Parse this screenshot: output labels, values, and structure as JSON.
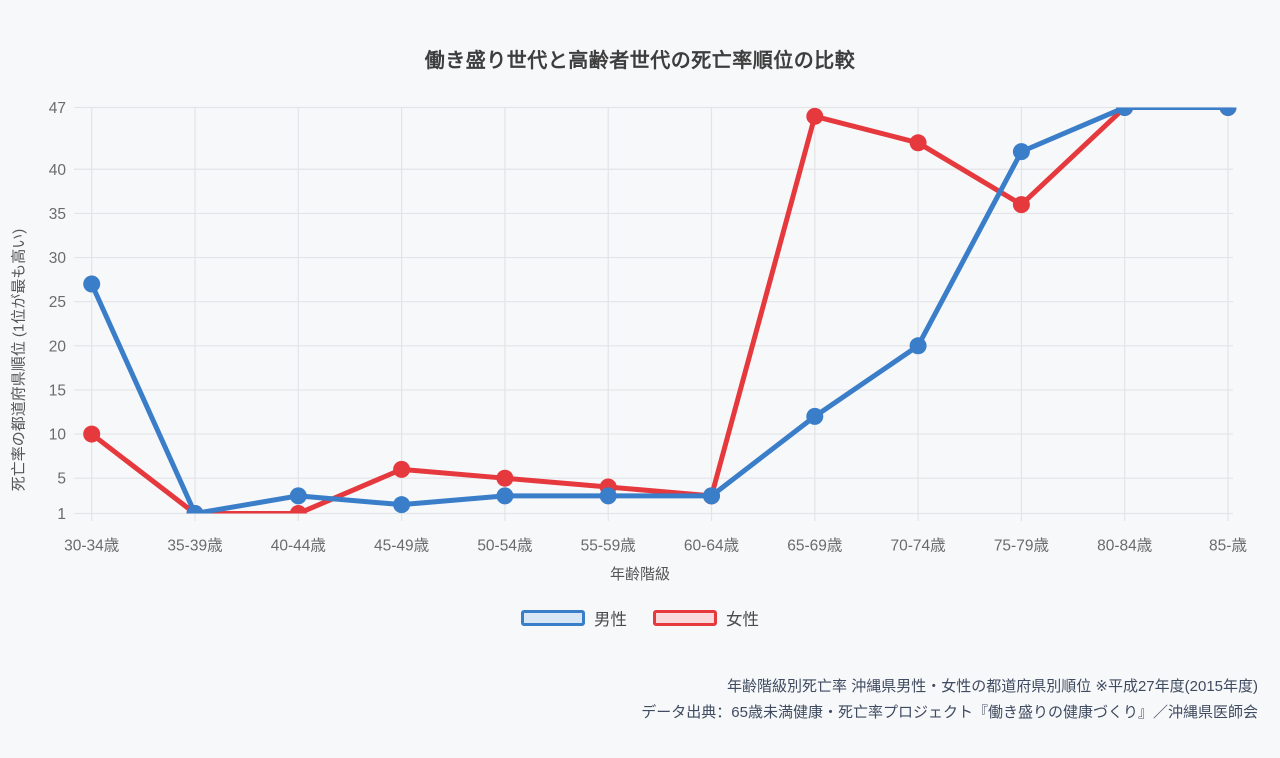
{
  "page": {
    "background": "#f7f8fa"
  },
  "header": {
    "title": "働き盛り世代と高齢者世代の死亡率順位の比較"
  },
  "chart_data": {
    "type": "line",
    "title": "働き盛り世代と高齢者世代の死亡率順位の比較",
    "categories": [
      "30-34歳",
      "35-39歳",
      "40-44歳",
      "45-49歳",
      "50-54歳",
      "55-59歳",
      "60-64歳",
      "65-69歳",
      "70-74歳",
      "75-79歳",
      "80-84歳",
      "85-歳"
    ],
    "series": [
      {
        "id": "male",
        "name": "男性",
        "color": "#3a7dc8",
        "fill_light": "#d9e6f6",
        "values": [
          27,
          1,
          3,
          2,
          3,
          3,
          3,
          12,
          20,
          42,
          47,
          47
        ]
      },
      {
        "id": "female",
        "name": "女性",
        "color": "#e5393e",
        "fill_light": "#f9d9db",
        "values": [
          10,
          1,
          1,
          6,
          5,
          4,
          3,
          46,
          43,
          36,
          47,
          47
        ]
      }
    ],
    "xlabel": "年齢階級",
    "ylabel": "死亡率の都道府県順位 (1位が最も高い)",
    "y_ticks": [
      1,
      5,
      10,
      15,
      20,
      25,
      30,
      35,
      40,
      47
    ],
    "ylim": [
      1,
      47
    ],
    "grid": true,
    "legend_position": "bottom"
  },
  "footer": {
    "line1": "年齢階級別死亡率 沖縄県男性・女性の都道府県別順位 ※平成27年度(2015年度)",
    "line2": "データ出典：65歳未満健康・死亡率プロジェクト『働き盛りの健康づくり』／沖縄県医師会"
  },
  "colors": {
    "grid": "#e3e4e7",
    "tick_text": "#6b6b6b",
    "axis_title_text": "#555555",
    "title_text": "#3e3e3e",
    "footer_text": "#3f4b60",
    "legend_text": "#4b4b4b"
  }
}
